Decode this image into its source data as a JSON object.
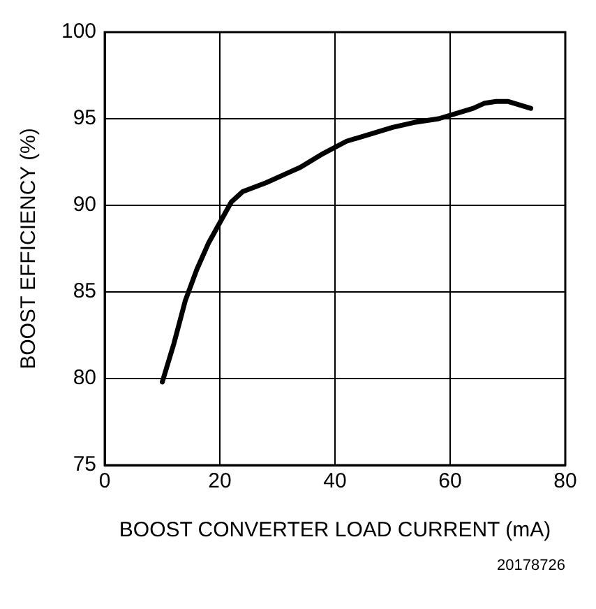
{
  "chart_data": {
    "type": "line",
    "xlabel": "BOOST CONVERTER LOAD CURRENT (mA)",
    "ylabel": "BOOST EFFICIENCY (%)",
    "annotations": [
      "20178726"
    ],
    "x": [
      10,
      12,
      14,
      16,
      18,
      20,
      22,
      24,
      28,
      32,
      34,
      38,
      42,
      46,
      50,
      54,
      58,
      62,
      64,
      66,
      68,
      70,
      72,
      74
    ],
    "series": [
      {
        "color": "#000000",
        "values": [
          79.8,
          82.0,
          84.5,
          86.3,
          87.8,
          89.0,
          90.2,
          90.8,
          91.3,
          91.9,
          92.2,
          93.0,
          93.7,
          94.1,
          94.5,
          94.8,
          95.0,
          95.4,
          95.6,
          95.9,
          96.0,
          96.0,
          95.8,
          95.6
        ]
      }
    ],
    "xlim": [
      0,
      80
    ],
    "xticks": [
      0,
      20,
      40,
      60,
      80
    ],
    "ylim": [
      75,
      100
    ],
    "yticks": [
      75,
      80,
      85,
      90,
      95,
      100
    ],
    "grid": true,
    "legend": false,
    "marker": "none",
    "line_style": "solid"
  }
}
